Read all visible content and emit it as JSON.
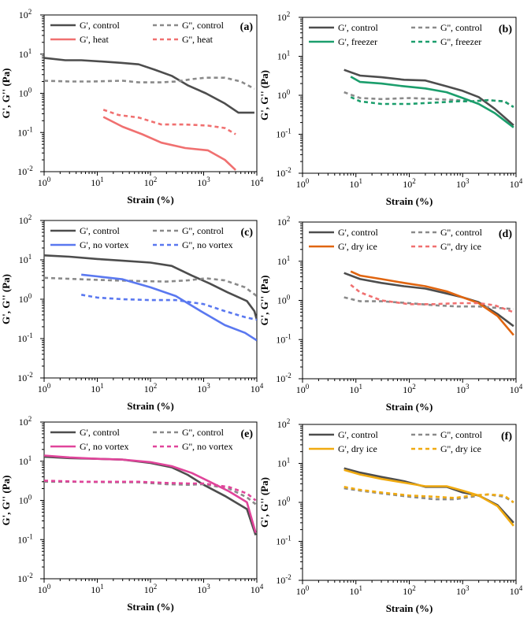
{
  "chart_data": [
    {
      "panel": "(a)",
      "type": "line",
      "title": "",
      "xlabel": "Strain (%)",
      "ylabel": "G', G'' (Pa)",
      "xscale": "log",
      "yscale": "log",
      "xlim": [
        1,
        10000
      ],
      "ylim": [
        0.01,
        100
      ],
      "legend_position": "top-right",
      "series": [
        {
          "name": "G', control",
          "style": "solid",
          "color": "#4d4d4d",
          "x": [
            1,
            2.5,
            5,
            12,
            28,
            60,
            120,
            250,
            500,
            1100,
            2500,
            4500,
            9000
          ],
          "y": [
            8,
            7,
            7,
            6.5,
            6,
            5.5,
            4,
            2.8,
            1.6,
            1.0,
            0.55,
            0.32,
            0.32
          ]
        },
        {
          "name": "G'', control",
          "style": "dashed",
          "color": "#8a8a8a",
          "x": [
            1,
            3,
            8,
            30,
            60,
            150,
            300,
            600,
            1100,
            2500,
            5000,
            9000
          ],
          "y": [
            2.1,
            2.0,
            2.0,
            2.1,
            1.9,
            1.9,
            2.0,
            2.3,
            2.5,
            2.5,
            2.0,
            1.3
          ]
        },
        {
          "name": "G', heat",
          "style": "solid",
          "color": "#f07070",
          "x": [
            13,
            30,
            70,
            160,
            450,
            1200,
            2500,
            4000
          ],
          "y": [
            0.25,
            0.14,
            0.09,
            0.055,
            0.04,
            0.035,
            0.02,
            0.011
          ]
        },
        {
          "name": "G'', heat",
          "style": "dashed",
          "color": "#f07070",
          "x": [
            13,
            25,
            60,
            160,
            450,
            1200,
            2500,
            4000
          ],
          "y": [
            0.38,
            0.28,
            0.24,
            0.16,
            0.16,
            0.15,
            0.13,
            0.09
          ]
        }
      ]
    },
    {
      "panel": "(b)",
      "type": "line",
      "title": "",
      "xlabel": "Strain (%)",
      "ylabel": "G', G'' (Pa)",
      "xscale": "log",
      "yscale": "log",
      "xlim": [
        1,
        10000
      ],
      "ylim": [
        0.01,
        100
      ],
      "legend_position": "top-right",
      "series": [
        {
          "name": "G', control",
          "style": "solid",
          "color": "#4d4d4d",
          "x": [
            6,
            12,
            30,
            80,
            200,
            500,
            1000,
            2000,
            4000,
            9000
          ],
          "y": [
            4.5,
            3.2,
            2.9,
            2.5,
            2.4,
            1.7,
            1.3,
            0.9,
            0.45,
            0.17
          ]
        },
        {
          "name": "G'', control",
          "style": "dashed",
          "color": "#8a8a8a",
          "x": [
            6,
            12,
            30,
            100,
            300,
            800,
            1500,
            3000,
            6000,
            9000
          ],
          "y": [
            1.2,
            0.85,
            0.8,
            0.85,
            0.8,
            0.75,
            0.7,
            0.75,
            0.7,
            0.5
          ]
        },
        {
          "name": "G', freezer",
          "style": "solid",
          "color": "#1b9e6c",
          "x": [
            8,
            12,
            30,
            80,
            200,
            500,
            1000,
            2000,
            4000,
            9000
          ],
          "y": [
            3.0,
            2.2,
            2.0,
            1.7,
            1.5,
            1.2,
            0.85,
            0.6,
            0.35,
            0.15
          ]
        },
        {
          "name": "G'', freezer",
          "style": "dashed",
          "color": "#1b9e6c",
          "x": [
            8,
            12,
            30,
            100,
            300,
            800,
            1500,
            3000,
            6000,
            9000
          ],
          "y": [
            0.9,
            0.7,
            0.6,
            0.6,
            0.65,
            0.7,
            0.7,
            0.75,
            0.7,
            0.5
          ]
        }
      ]
    },
    {
      "panel": "(c)",
      "type": "line",
      "title": "",
      "xlabel": "Strain (%)",
      "ylabel": "G', G'' (Pa)",
      "xscale": "log",
      "yscale": "log",
      "xlim": [
        1,
        10000
      ],
      "ylim": [
        0.01,
        100
      ],
      "legend_position": "top-right",
      "series": [
        {
          "name": "G', control",
          "style": "solid",
          "color": "#4d4d4d",
          "x": [
            1,
            3,
            10,
            30,
            100,
            250,
            600,
            1300,
            2800,
            6500,
            9000,
            10000
          ],
          "y": [
            13,
            12,
            10.5,
            9.5,
            8.5,
            7,
            4,
            2.5,
            1.5,
            0.9,
            0.5,
            0.3
          ]
        },
        {
          "name": "G'', control",
          "style": "dashed",
          "color": "#8a8a8a",
          "x": [
            1,
            5,
            20,
            60,
            200,
            500,
            1100,
            2500,
            6000,
            10000
          ],
          "y": [
            3.5,
            3.2,
            3.0,
            2.9,
            2.8,
            3.0,
            3.4,
            3.0,
            2.0,
            1.2
          ]
        },
        {
          "name": "G', no vortex",
          "style": "solid",
          "color": "#5a78f0",
          "x": [
            5,
            10,
            30,
            100,
            300,
            1000,
            2500,
            6000,
            10000
          ],
          "y": [
            4.2,
            3.8,
            3.2,
            2.0,
            1.2,
            0.45,
            0.22,
            0.14,
            0.09
          ]
        },
        {
          "name": "G'', no vortex",
          "style": "dashed",
          "color": "#5a78f0",
          "x": [
            5,
            10,
            30,
            100,
            300,
            1000,
            2500,
            6000,
            10000
          ],
          "y": [
            1.3,
            1.1,
            1.0,
            0.95,
            0.95,
            0.75,
            0.5,
            0.35,
            0.3
          ]
        }
      ]
    },
    {
      "panel": "(d)",
      "type": "line",
      "title": "",
      "xlabel": "Strain (%)",
      "ylabel": "G', G'' (Pa)",
      "xscale": "log",
      "yscale": "log",
      "xlim": [
        1,
        10000
      ],
      "ylim": [
        0.01,
        100
      ],
      "legend_position": "top-right",
      "series": [
        {
          "name": "G', control",
          "style": "solid",
          "color": "#4d4d4d",
          "x": [
            6,
            12,
            30,
            80,
            200,
            500,
            1000,
            2000,
            4500,
            9000
          ],
          "y": [
            5,
            3.5,
            2.8,
            2.3,
            2.0,
            1.5,
            1.2,
            0.9,
            0.45,
            0.22
          ]
        },
        {
          "name": "G'', control",
          "style": "dashed",
          "color": "#8a8a8a",
          "x": [
            6,
            12,
            30,
            100,
            300,
            800,
            2000,
            4000,
            9000
          ],
          "y": [
            1.2,
            0.95,
            0.95,
            0.85,
            0.75,
            0.7,
            0.7,
            0.65,
            0.6
          ]
        },
        {
          "name": "G', dry ice",
          "style": "solid",
          "color": "#e06510",
          "x": [
            8,
            12,
            30,
            80,
            200,
            500,
            1000,
            2000,
            4500,
            9000
          ],
          "y": [
            5.5,
            4.3,
            3.5,
            2.8,
            2.3,
            1.7,
            1.2,
            0.85,
            0.4,
            0.13
          ]
        },
        {
          "name": "G'', dry ice",
          "style": "dashed",
          "color": "#f07070",
          "x": [
            8,
            12,
            30,
            100,
            300,
            800,
            2000,
            4000,
            9000
          ],
          "y": [
            2.5,
            1.6,
            1.0,
            0.8,
            0.8,
            0.85,
            0.85,
            0.75,
            0.5
          ]
        }
      ]
    },
    {
      "panel": "(e)",
      "type": "line",
      "title": "",
      "xlabel": "Strain (%)",
      "ylabel": "G', G'' (Pa)",
      "xscale": "log",
      "yscale": "log",
      "xlim": [
        1,
        10000
      ],
      "ylim": [
        0.01,
        100
      ],
      "legend_position": "top-right",
      "series": [
        {
          "name": "G', control",
          "style": "solid",
          "color": "#4d4d4d",
          "x": [
            1,
            3,
            10,
            30,
            100,
            250,
            500,
            1000,
            2500,
            6500,
            9500
          ],
          "y": [
            13,
            12,
            11.5,
            11,
            9,
            7,
            4.5,
            2.5,
            1.3,
            0.6,
            0.13
          ]
        },
        {
          "name": "G'', control",
          "style": "dashed",
          "color": "#8a8a8a",
          "x": [
            1,
            5,
            20,
            60,
            200,
            500,
            1000,
            3000,
            6500,
            9500
          ],
          "y": [
            3.0,
            3.0,
            2.9,
            2.9,
            2.6,
            2.5,
            2.6,
            2.0,
            1.2,
            0.8
          ]
        },
        {
          "name": "G', no vortex",
          "style": "solid",
          "color": "#e0449a",
          "x": [
            1,
            3,
            10,
            30,
            100,
            250,
            600,
            1300,
            3000,
            6500,
            9500
          ],
          "y": [
            14,
            12.5,
            11.5,
            11,
            9.5,
            7.5,
            5,
            3,
            1.7,
            0.9,
            0.15
          ]
        },
        {
          "name": "G'', no vortex",
          "style": "dashed",
          "color": "#e0449a",
          "x": [
            1,
            5,
            20,
            60,
            200,
            500,
            1000,
            3000,
            6500,
            9500
          ],
          "y": [
            3.2,
            3.0,
            3.0,
            3.0,
            2.8,
            2.7,
            2.7,
            2.2,
            1.5,
            1.0
          ]
        }
      ]
    },
    {
      "panel": "(f)",
      "type": "line",
      "title": "",
      "xlabel": "Strain (%)",
      "ylabel": "G', G'' (Pa)",
      "xscale": "log",
      "yscale": "log",
      "xlim": [
        1,
        10000
      ],
      "ylim": [
        0.01,
        100
      ],
      "legend_position": "top-right",
      "series": [
        {
          "name": "G', control",
          "style": "solid",
          "color": "#4d4d4d",
          "x": [
            6,
            12,
            30,
            80,
            200,
            500,
            1000,
            2000,
            4500,
            9000
          ],
          "y": [
            7.5,
            5.8,
            4.5,
            3.5,
            2.5,
            2.5,
            1.8,
            1.5,
            0.85,
            0.3
          ]
        },
        {
          "name": "G'', control",
          "style": "dashed",
          "color": "#8a8a8a",
          "x": [
            6,
            12,
            30,
            100,
            300,
            700,
            1500,
            3000,
            6000,
            9000
          ],
          "y": [
            2.3,
            2.0,
            1.7,
            1.4,
            1.2,
            1.2,
            1.4,
            1.6,
            1.4,
            1.0
          ]
        },
        {
          "name": "G', dry ice",
          "style": "solid",
          "color": "#f0aa10",
          "x": [
            6,
            12,
            30,
            80,
            200,
            500,
            1000,
            2000,
            4500,
            9000
          ],
          "y": [
            6.8,
            5.2,
            4.0,
            3.2,
            2.6,
            2.6,
            2.0,
            1.5,
            0.8,
            0.25
          ]
        },
        {
          "name": "G'', dry ice",
          "style": "dashed",
          "color": "#f0aa10",
          "x": [
            6,
            12,
            30,
            100,
            300,
            700,
            1500,
            3000,
            6000,
            9000
          ],
          "y": [
            2.5,
            2.1,
            1.8,
            1.5,
            1.4,
            1.3,
            1.5,
            1.6,
            1.5,
            1.0
          ]
        }
      ]
    }
  ]
}
